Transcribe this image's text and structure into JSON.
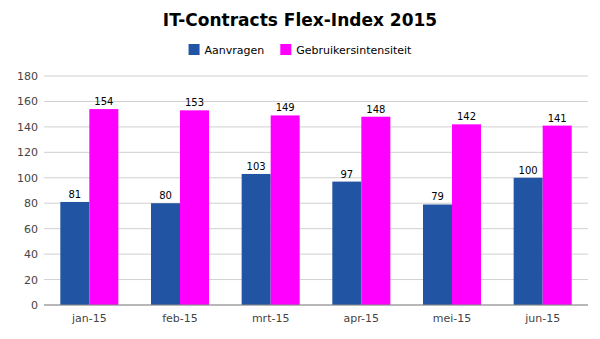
{
  "chart_data": {
    "type": "bar",
    "title": "IT-Contracts Flex-Index 2015",
    "categories": [
      "jan-15",
      "feb-15",
      "mrt-15",
      "apr-15",
      "mei-15",
      "jun-15"
    ],
    "series": [
      {
        "name": "Aanvragen",
        "color": "#2155A3",
        "values": [
          81,
          80,
          103,
          97,
          79,
          100
        ]
      },
      {
        "name": "Gebruikersintensiteit",
        "color": "#FF00FF",
        "values": [
          154,
          153,
          149,
          148,
          142,
          141
        ]
      }
    ],
    "ylim": [
      0,
      180
    ],
    "yticks": [
      0,
      20,
      40,
      60,
      80,
      100,
      120,
      140,
      160,
      180
    ],
    "grid": true,
    "legend": "top",
    "data_labels": true
  }
}
